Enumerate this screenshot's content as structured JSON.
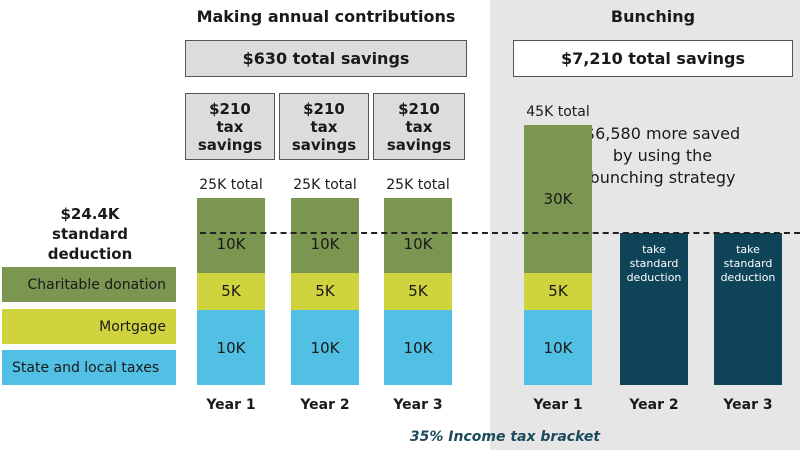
{
  "titles": {
    "left": "Making annual contributions",
    "right": "Bunching"
  },
  "savings": {
    "left": "$630 total savings",
    "right": "$7,210 total savings"
  },
  "tax_savings": [
    [
      "$210",
      "tax",
      "savings"
    ],
    [
      "$210",
      "tax",
      "savings"
    ],
    [
      "$210",
      "tax",
      "savings"
    ]
  ],
  "deduction_label": [
    "$24.4K",
    "standard",
    "deduction"
  ],
  "annotation": "$6,580 more saved by using the bunching strategy",
  "footnote": "35% Income tax bracket",
  "colors": {
    "charitable": "#7a9650",
    "mortgage": "#cfd33d",
    "salt": "#52bfe4",
    "standard": "#0e4358",
    "panel": "#e6e6e6",
    "footnote": "#1d4a5c"
  },
  "chart_data": {
    "type": "bar",
    "stacked": true,
    "legend": [
      "Charitable donation",
      "Mortgage",
      "State and local taxes"
    ],
    "legend_placement": "left",
    "reference_line": {
      "value": 24.4,
      "label": "$24.4K standard deduction"
    },
    "groups": [
      {
        "category": "Year 1",
        "total_label": "25K total",
        "segments": [
          {
            "series": "State and local taxes",
            "value": 10,
            "label": "10K"
          },
          {
            "series": "Mortgage",
            "value": 5,
            "label": "5K"
          },
          {
            "series": "Charitable donation",
            "value": 10,
            "label": "10K"
          }
        ]
      },
      {
        "category": "Year 2",
        "total_label": "25K total",
        "segments": [
          {
            "series": "State and local taxes",
            "value": 10,
            "label": "10K"
          },
          {
            "series": "Mortgage",
            "value": 5,
            "label": "5K"
          },
          {
            "series": "Charitable donation",
            "value": 10,
            "label": "10K"
          }
        ]
      },
      {
        "category": "Year 3",
        "total_label": "25K total",
        "segments": [
          {
            "series": "State and local taxes",
            "value": 10,
            "label": "10K"
          },
          {
            "series": "Mortgage",
            "value": 5,
            "label": "5K"
          },
          {
            "series": "Charitable donation",
            "value": 10,
            "label": "10K"
          }
        ]
      },
      {
        "category": "Year 1",
        "total_label": "45K total",
        "segments": [
          {
            "series": "State and local taxes",
            "value": 10,
            "label": "10K"
          },
          {
            "series": "Mortgage",
            "value": 5,
            "label": "5K"
          },
          {
            "series": "Charitable donation",
            "value": 30,
            "label": "30K"
          }
        ]
      },
      {
        "category": "Year 2",
        "standard": "take standard deduction"
      },
      {
        "category": "Year 3",
        "standard": "take standard deduction"
      }
    ]
  }
}
